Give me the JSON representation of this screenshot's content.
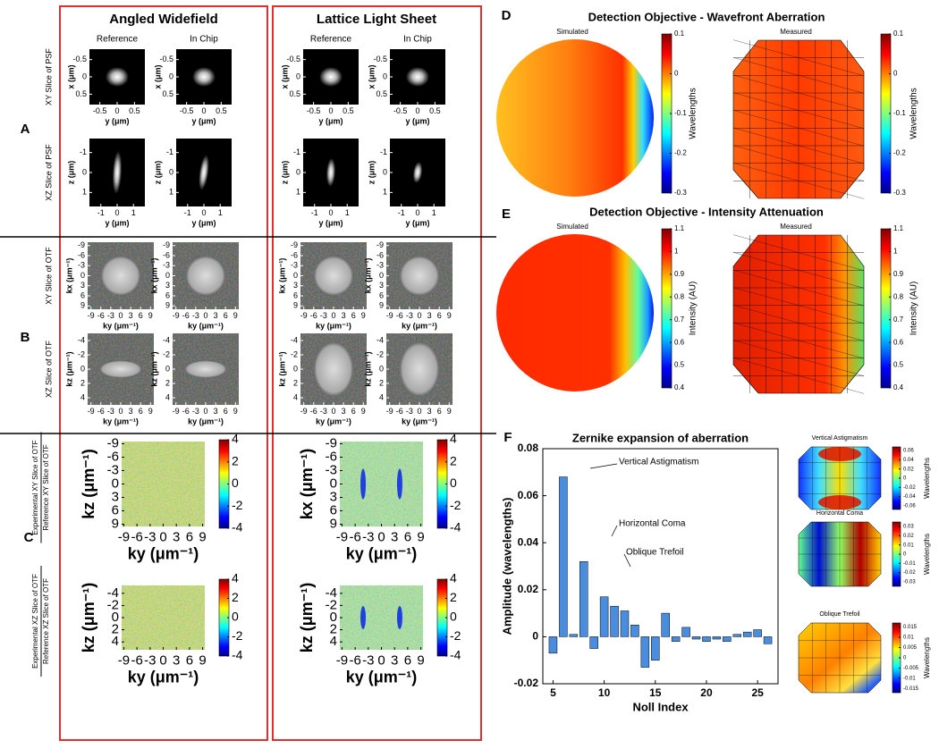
{
  "figure": {
    "panel_labels": [
      "A",
      "B",
      "C",
      "D",
      "E",
      "F"
    ],
    "columns": [
      "Angled Widefield",
      "Lattice Light Sheet"
    ],
    "subcolumns": [
      "Reference",
      "In Chip"
    ],
    "psf": {
      "row_labels": [
        "XY Slice of PSF",
        "XZ Slice of PSF"
      ],
      "xy": {
        "xlabel": "y (μm)",
        "ylabel": "x (μm)",
        "xlim": [
          -0.8,
          0.8
        ],
        "xticks": [
          -0.5,
          0,
          0.5
        ],
        "ylim": [
          -0.8,
          0.8
        ],
        "yticks": [
          -0.5,
          0,
          0.5
        ]
      },
      "xz": {
        "xlabel": "y (μm)",
        "ylabel": "z (μm)",
        "xlim": [
          -1.7,
          1.7
        ],
        "xticks": [
          -1,
          0,
          1
        ],
        "ylim": [
          -1.7,
          1.7
        ],
        "yticks": [
          -1,
          0,
          1
        ]
      }
    },
    "otf": {
      "row_labels": [
        "XY Slice of OTF",
        "XZ Slice of OTF"
      ],
      "xy": {
        "xlabel": "ky (μm⁻¹)",
        "ylabel": "kx (μm⁻¹)",
        "xlim": [
          -10,
          10
        ],
        "xticks": [
          -9,
          -6,
          -3,
          0,
          3,
          6,
          9
        ],
        "ylim": [
          -10,
          10
        ],
        "yticks": [
          -9,
          -6,
          -3,
          0,
          3,
          6,
          9
        ]
      },
      "xz": {
        "xlabel": "ky (μm⁻¹)",
        "ylabel": "kz (μm⁻¹)",
        "xlim": [
          -10,
          10
        ],
        "xticks": [
          -9,
          -6,
          -3,
          0,
          3,
          6,
          9
        ],
        "ylim": [
          -5,
          5
        ],
        "yticks": [
          -4,
          -2,
          0,
          2,
          4
        ]
      }
    },
    "ratio": {
      "row_labels": [
        {
          "numerator": "Experimental XY Slice of OTF",
          "denominator": "Reference XY Slice of OTF"
        },
        {
          "numerator": "Experimental XZ Slice of OTF",
          "denominator": "Reference XZ Slice of OTF"
        }
      ],
      "clim": [
        -4,
        4
      ],
      "cticks": [
        -4,
        -2,
        0,
        2,
        4
      ],
      "xy": {
        "xlabel": "ky (μm⁻¹)",
        "ylabels": [
          "kz (μm⁻¹)",
          "kx (μm⁻¹)"
        ],
        "xlim": [
          -9.5,
          9.5
        ],
        "xticks": [
          -9,
          -6,
          -3,
          0,
          3,
          6,
          9
        ],
        "ylim": [
          -9.5,
          9.5
        ],
        "yticks": [
          -9,
          -6,
          -3,
          0,
          3,
          6,
          9
        ]
      },
      "xz": {
        "xlabel": "ky (μm⁻¹)",
        "ylabels": [
          "kz (μm⁻¹)",
          "kz (μm⁻¹)"
        ],
        "xlim": [
          -9.5,
          9.5
        ],
        "xticks": [
          -9,
          -6,
          -3,
          0,
          3,
          6,
          9
        ],
        "ylim": [
          -5.3,
          5.3
        ],
        "yticks": [
          -4,
          -2,
          0,
          2,
          4
        ]
      }
    },
    "wavefront": {
      "title": "Detection Objective - Wavefront Aberration",
      "subtitles": [
        "Simulated",
        "Measured"
      ],
      "colorbar_label": "Wavelengths",
      "clim": [
        -0.3,
        0.1
      ],
      "cticks": [
        -0.3,
        -0.2,
        -0.1,
        0,
        0.1
      ]
    },
    "intensity": {
      "title": "Detection Objective - Intensity Attenuation",
      "subtitles": [
        "Simulated",
        "Measured"
      ],
      "colorbar_label": "Intensity (AU)",
      "clim": [
        0.4,
        1.1
      ],
      "cticks": [
        0.4,
        0.5,
        0.6,
        0.7,
        0.8,
        0.9,
        1,
        1.1
      ]
    },
    "zernike_maps": [
      {
        "title": "Vertical Astigmatism",
        "colorbar_label": "Wavelengths",
        "clim": [
          -0.068,
          0.068
        ],
        "cticks": [
          -0.06,
          -0.04,
          -0.02,
          0,
          0.02,
          0.04,
          0.06
        ]
      },
      {
        "title": "Horizontal Coma",
        "colorbar_label": "Wavelengths",
        "clim": [
          -0.035,
          0.035
        ],
        "cticks": [
          -0.03,
          -0.02,
          -0.01,
          0,
          0.01,
          0.02,
          0.03
        ]
      },
      {
        "title": "Oblique Trefoil",
        "colorbar_label": "Wavelengths",
        "clim": [
          -0.017,
          0.017
        ],
        "cticks": [
          -0.015,
          -0.01,
          -0.005,
          0,
          0.005,
          0.01,
          0.015
        ]
      }
    ]
  },
  "chart_data": {
    "type": "bar",
    "title": "Zernike expansion of aberration",
    "x": [
      5,
      6,
      7,
      8,
      9,
      10,
      11,
      12,
      13,
      14,
      15,
      16,
      17,
      18,
      19,
      20,
      21,
      22,
      23,
      24,
      25,
      26
    ],
    "values": [
      -0.007,
      0.068,
      0.001,
      0.032,
      -0.005,
      0.017,
      0.013,
      0.011,
      0.005,
      -0.013,
      -0.01,
      0.01,
      -0.002,
      0.004,
      -0.001,
      -0.002,
      -0.001,
      -0.002,
      0.001,
      0.002,
      0.003,
      -0.003
    ],
    "color": "#4a8ddf",
    "xlim": [
      4,
      27
    ],
    "xticks": [
      5,
      10,
      15,
      20,
      25
    ],
    "ylim": [
      -0.02,
      0.08
    ],
    "yticks": [
      -0.02,
      0,
      0.02,
      0.04,
      0.06,
      0.08
    ],
    "xlabel": "Noll Index",
    "ylabel": "Amplitude (wavelengths)",
    "annotations": [
      "Vertical Astigmatism",
      "Horizontal Coma",
      "Oblique Trefoil"
    ]
  }
}
